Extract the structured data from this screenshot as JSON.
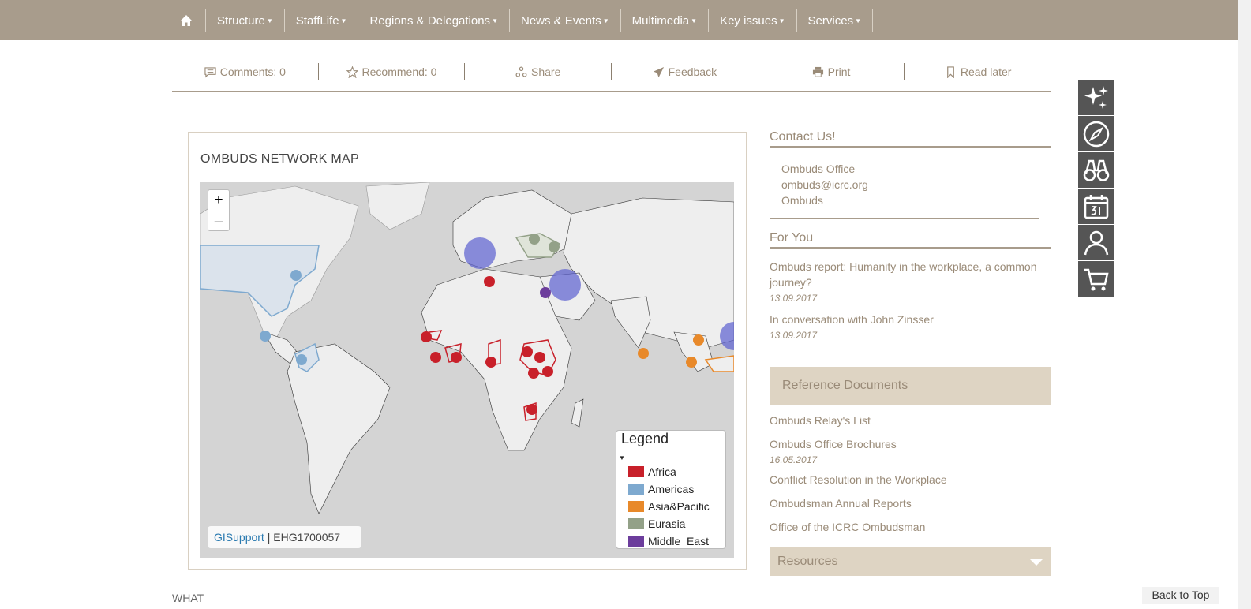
{
  "nav": {
    "items": [
      {
        "label": "Structure"
      },
      {
        "label": "StaffLife"
      },
      {
        "label": "Regions & Delegations"
      },
      {
        "label": "News & Events"
      },
      {
        "label": "Multimedia"
      },
      {
        "label": "Key issues"
      },
      {
        "label": "Services"
      }
    ]
  },
  "actions": {
    "comments": "Comments: 0",
    "recommend": "Recommend: 0",
    "share": "Share",
    "feedback": "Feedback",
    "print": "Print",
    "read_later": "Read later"
  },
  "map": {
    "title": "OMBUDS NETWORK MAP",
    "zoom_in": "+",
    "zoom_out": "–",
    "legend_title": "Legend",
    "legend": [
      {
        "label": "Africa",
        "color": "#c8202a"
      },
      {
        "label": "Americas",
        "color": "#7ea9cf"
      },
      {
        "label": "Asia&Pacific",
        "color": "#e8892a"
      },
      {
        "label": "Eurasia",
        "color": "#93a188"
      },
      {
        "label": "Middle_East",
        "color": "#6c3d9c"
      }
    ],
    "attribution_link": "GISupport",
    "attribution_sep": " | ",
    "attribution_code": "EHG1700057"
  },
  "sidebar": {
    "contact_title": "Contact Us!",
    "contact_lines": [
      "Ombuds Office",
      "ombuds@icrc.org",
      "Ombuds"
    ],
    "for_you_title": "For You",
    "for_you": [
      {
        "title": "Ombuds report: Humanity in the workplace, a common journey?",
        "date": "13.09.2017"
      },
      {
        "title": "In conversation with John Zinsser",
        "date": "13.09.2017"
      }
    ],
    "reference_title": "Reference Documents",
    "references": [
      {
        "title": "Ombuds Relay's List",
        "date": ""
      },
      {
        "title": "Ombuds Office Brochures",
        "date": "16.05.2017"
      },
      {
        "title": "Conflict Resolution in the Workplace",
        "date": ""
      },
      {
        "title": "Ombudsman Annual Reports",
        "date": ""
      },
      {
        "title": "Office of the ICRC Ombudsman",
        "date": ""
      }
    ],
    "resources_title": "Resources"
  },
  "footer": {
    "what": "WHAT",
    "back_to_top": "Back to Top"
  },
  "colors": {
    "nav_bg": "#a89c8c",
    "accent_text": "#9a8b78",
    "panel_bg": "#ded4c3"
  }
}
